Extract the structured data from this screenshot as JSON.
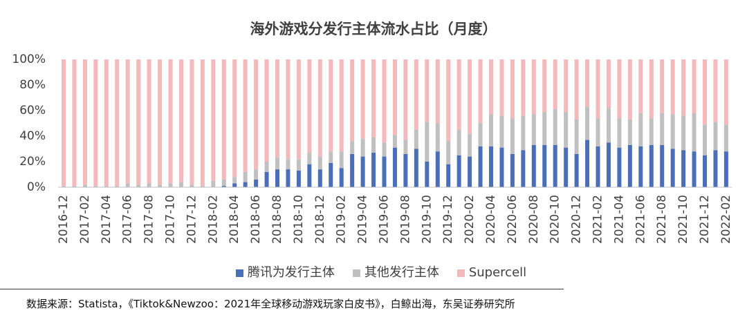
{
  "chart_data": {
    "type": "bar",
    "stacked": true,
    "title": "海外游戏分发行主体流水占比（月度）",
    "categories": [
      "2016-12",
      "",
      "2017-02",
      "",
      "2017-04",
      "",
      "2017-06",
      "",
      "2017-08",
      "",
      "2017-10",
      "",
      "2017-12",
      "",
      "2018-02",
      "",
      "2018-04",
      "",
      "2018-06",
      "",
      "2018-08",
      "",
      "2018-10",
      "",
      "2018-12",
      "",
      "2019-02",
      "",
      "2019-04",
      "",
      "2019-06",
      "",
      "2019-08",
      "",
      "2019-10",
      "",
      "2019-12",
      "",
      "2020-02",
      "",
      "2020-04",
      "",
      "2020-06",
      "",
      "2020-08",
      "",
      "2020-10",
      "",
      "2020-12",
      "",
      "2021-02",
      "",
      "2021-04",
      "",
      "2021-06",
      "",
      "2021-08",
      "",
      "2021-10",
      "",
      "2021-12",
      "",
      "2022-02"
    ],
    "series": [
      {
        "name": "腾讯为发行主体",
        "color": "#4A6EB8",
        "values": [
          0,
          0,
          0,
          0,
          0,
          0,
          0,
          0,
          0,
          0,
          0,
          0,
          0,
          0,
          0,
          1,
          3,
          4,
          6,
          12,
          14,
          14,
          13,
          18,
          14,
          19,
          15,
          26,
          24,
          27,
          24,
          31,
          26,
          30,
          20,
          28,
          18,
          25,
          24,
          32,
          32,
          31,
          26,
          29,
          33,
          33,
          33,
          31,
          26,
          37,
          32,
          35,
          31,
          33,
          32,
          33,
          33,
          30,
          29,
          28,
          25,
          29,
          28
        ]
      },
      {
        "name": "其他发行主体",
        "color": "#C0C0C0",
        "values": [
          1,
          1,
          2,
          1,
          1,
          1,
          3,
          2,
          3,
          2,
          3,
          4,
          2,
          1,
          5,
          5,
          5,
          8,
          8,
          8,
          9,
          8,
          9,
          9,
          10,
          9,
          13,
          10,
          14,
          12,
          11,
          10,
          11,
          15,
          31,
          22,
          18,
          20,
          18,
          18,
          25,
          25,
          28,
          27,
          24,
          26,
          28,
          28,
          27,
          26,
          22,
          27,
          23,
          20,
          26,
          21,
          25,
          27,
          27,
          30,
          24,
          22,
          21
        ]
      },
      {
        "name": "Supercell",
        "color": "#F4B9BA",
        "values": [
          99,
          99,
          98,
          99,
          99,
          99,
          97,
          98,
          97,
          98,
          97,
          96,
          98,
          99,
          95,
          94,
          92,
          88,
          86,
          80,
          77,
          78,
          78,
          73,
          76,
          72,
          72,
          64,
          62,
          61,
          65,
          59,
          63,
          55,
          49,
          50,
          64,
          55,
          58,
          50,
          43,
          44,
          46,
          44,
          43,
          41,
          39,
          41,
          47,
          37,
          46,
          38,
          46,
          47,
          42,
          46,
          42,
          43,
          44,
          42,
          51,
          49,
          51
        ]
      }
    ],
    "y_ticks": [
      "0%",
      "20%",
      "40%",
      "60%",
      "80%",
      "100%"
    ],
    "ylim": [
      0,
      100
    ],
    "grid": false,
    "legend_position": "bottom"
  },
  "source": "数据来源：Statista，《Tiktok&Newzoo：2021年全球移动游戏玩家白皮书》，白鲸出海，东吴证券研究所"
}
